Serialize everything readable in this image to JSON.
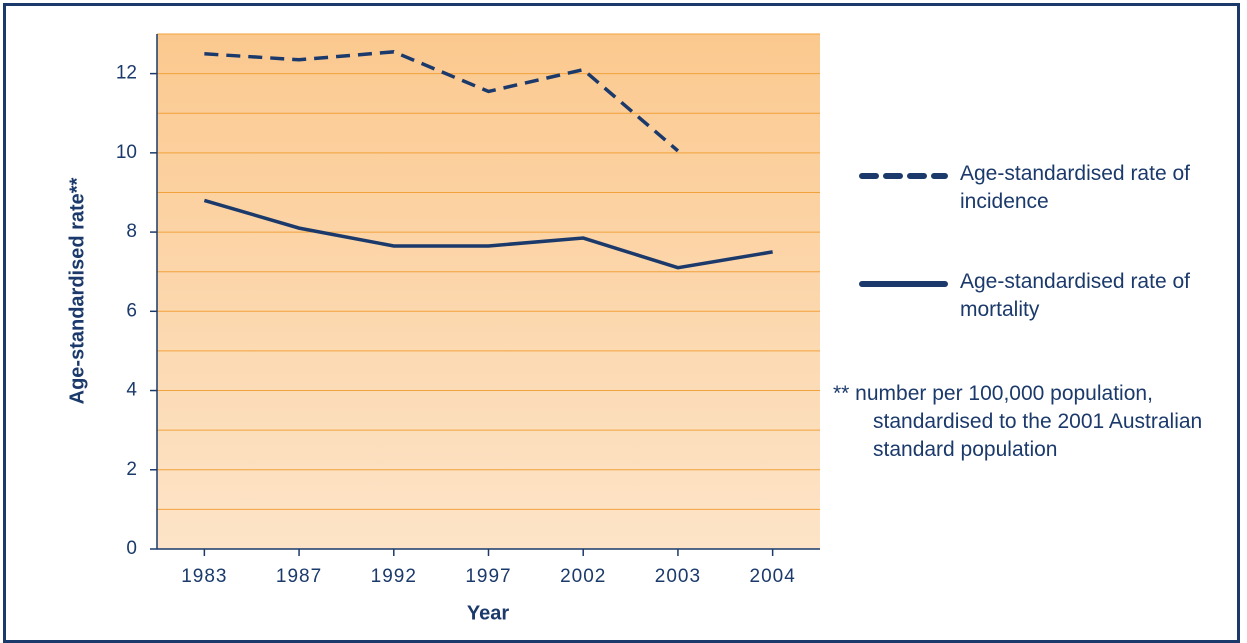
{
  "chart_data": {
    "type": "line",
    "y_label": "Age-standardised rate**",
    "x_label": "Year",
    "categories": [
      "1983",
      "1987",
      "1992",
      "1997",
      "2002",
      "2003",
      "2004"
    ],
    "series": [
      {
        "name": "Age-standardised rate of incidence",
        "color": "#1b3a6b",
        "dash": true,
        "values": [
          12.5,
          12.35,
          12.55,
          11.55,
          12.1,
          10.05,
          null
        ]
      },
      {
        "name": "Age-standardised rate of mortality",
        "color": "#1b3a6b",
        "dash": false,
        "values": [
          8.8,
          8.1,
          7.65,
          7.65,
          7.85,
          7.1,
          7.5
        ]
      }
    ],
    "ylim": [
      0,
      13
    ],
    "yticks": [
      0,
      2,
      4,
      6,
      8,
      10,
      12
    ],
    "minor_yticks": [
      1,
      3,
      5,
      7,
      9,
      11,
      13
    ],
    "grid": true,
    "annotation": "** number per 100,000 population, standardised to the 2001 Australian standard population"
  }
}
